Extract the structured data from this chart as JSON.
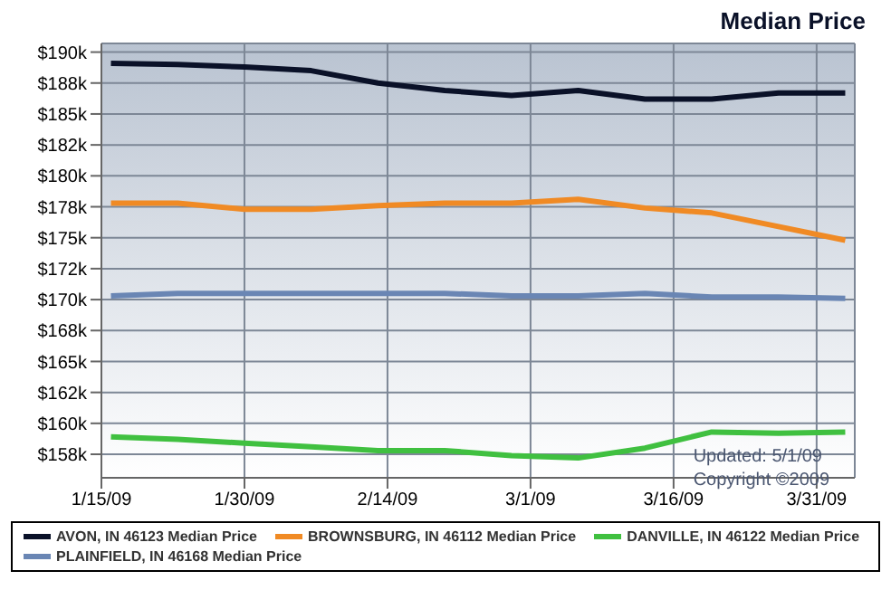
{
  "chart_data": {
    "type": "line",
    "title": "Median Price",
    "x": [
      "2009-01-16",
      "2009-01-23",
      "2009-01-30",
      "2009-02-06",
      "2009-02-13",
      "2009-02-20",
      "2009-02-27",
      "2009-03-06",
      "2009-03-13",
      "2009-03-20",
      "2009-03-27",
      "2009-04-03"
    ],
    "series": [
      {
        "name": "AVON, IN 46123 Median Price",
        "color": "#0a1128",
        "values": [
          189100,
          189000,
          188800,
          188500,
          187500,
          186900,
          186500,
          186900,
          186200,
          186200,
          186700,
          186700
        ]
      },
      {
        "name": "BROWNSBURG, IN 46112 Median Price",
        "color": "#f08a24",
        "values": [
          177800,
          177800,
          177300,
          177300,
          177600,
          177800,
          177800,
          178100,
          177400,
          177000,
          175900,
          174800
        ]
      },
      {
        "name": "DANVILLE, IN 46122 Median Price",
        "color": "#40c040",
        "values": [
          158900,
          158700,
          158400,
          158100,
          157800,
          157800,
          157400,
          157200,
          158000,
          159300,
          159200,
          159300
        ]
      },
      {
        "name": "PLAINFIELD, IN 46168 Median Price",
        "color": "#6a86b4",
        "values": [
          170300,
          170500,
          170500,
          170500,
          170500,
          170500,
          170300,
          170300,
          170500,
          170200,
          170200,
          170100
        ]
      }
    ],
    "xlim": [
      "2009-01-15",
      "2009-04-04"
    ],
    "xticks": [
      {
        "value": "2009-01-15",
        "label": "1/15/09"
      },
      {
        "value": "2009-01-30",
        "label": "1/30/09"
      },
      {
        "value": "2009-02-14",
        "label": "2/14/09"
      },
      {
        "value": "2009-03-01",
        "label": "3/1/09"
      },
      {
        "value": "2009-03-16",
        "label": "3/16/09"
      },
      {
        "value": "2009-03-31",
        "label": "3/31/09"
      }
    ],
    "ylim": [
      155600,
      190700
    ],
    "yticks": [
      {
        "value": 157500,
        "label": "$158k"
      },
      {
        "value": 160000,
        "label": "$160k"
      },
      {
        "value": 162500,
        "label": "$162k"
      },
      {
        "value": 165000,
        "label": "$165k"
      },
      {
        "value": 167500,
        "label": "$168k"
      },
      {
        "value": 170000,
        "label": "$170k"
      },
      {
        "value": 172500,
        "label": "$172k"
      },
      {
        "value": 175000,
        "label": "$175k"
      },
      {
        "value": 177500,
        "label": "$178k"
      },
      {
        "value": 180000,
        "label": "$180k"
      },
      {
        "value": 182500,
        "label": "$182k"
      },
      {
        "value": 185000,
        "label": "$185k"
      },
      {
        "value": 187500,
        "label": "$188k"
      },
      {
        "value": 190000,
        "label": "$190k"
      }
    ],
    "grid": true,
    "legend": "bottom",
    "marker": "none",
    "line_style": "solid",
    "annotations": [
      "Updated: 5/1/09",
      "Copyright ©2009"
    ]
  }
}
